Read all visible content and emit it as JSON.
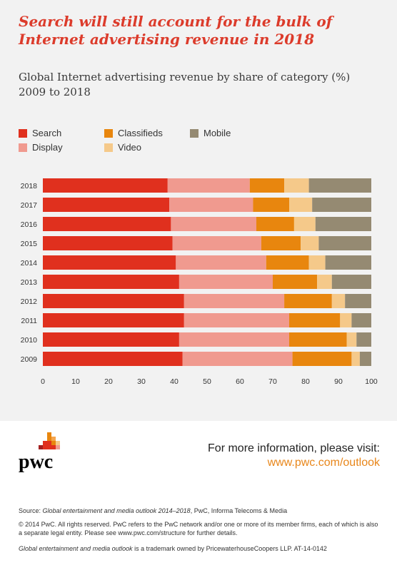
{
  "headline": "Search will still account for the bulk of Internet advertising revenue in 2018",
  "subtitle_line1": "Global Internet advertising revenue by share of category (%)",
  "subtitle_line2": "2009 to 2018",
  "colors": {
    "Search": "#e0301e",
    "Display": "#f09a8f",
    "Classifieds": "#e8860e",
    "Video": "#f5c98a",
    "Mobile": "#958a72"
  },
  "legend": [
    {
      "name": "Search",
      "color": "#e0301e"
    },
    {
      "name": "Classifieds",
      "color": "#e8860e"
    },
    {
      "name": "Mobile",
      "color": "#958a72"
    },
    {
      "name": "Display",
      "color": "#f09a8f"
    },
    {
      "name": "Video",
      "color": "#f5c98a"
    }
  ],
  "chart_data": {
    "type": "bar",
    "orientation": "horizontal",
    "stacked": true,
    "categories": [
      "2018",
      "2017",
      "2016",
      "2015",
      "2014",
      "2013",
      "2012",
      "2011",
      "2010",
      "2009"
    ],
    "series": [
      {
        "name": "Search",
        "values": [
          38,
          38.5,
          39,
          39.5,
          40.5,
          41.5,
          43,
          43,
          41.5,
          42.5
        ]
      },
      {
        "name": "Display",
        "values": [
          25,
          25.5,
          26,
          27,
          27.5,
          28.5,
          30.5,
          32,
          33.5,
          33.5
        ]
      },
      {
        "name": "Classifieds",
        "values": [
          10.5,
          11,
          11.5,
          12,
          13,
          13.5,
          14.5,
          15.5,
          17.5,
          18
        ]
      },
      {
        "name": "Video",
        "values": [
          7.5,
          7,
          6.5,
          5.5,
          5,
          4.5,
          4,
          3.5,
          3,
          2.5
        ]
      },
      {
        "name": "Mobile",
        "values": [
          19,
          18,
          17,
          16,
          14,
          12,
          8,
          6,
          4.5,
          3.5
        ]
      }
    ],
    "xlim": [
      0,
      100
    ],
    "xticks": [
      0,
      10,
      20,
      30,
      40,
      50,
      60,
      70,
      80,
      90,
      100
    ],
    "grid": false,
    "legend_position": "top"
  },
  "logo_text": "pwc",
  "visit_label": "For more information, please visit:",
  "visit_link": "www.pwc.com/outlook",
  "footer": {
    "source_label": "Source: ",
    "source_title": "Global entertainment and media outlook 2014–2018",
    "source_rest": ", PwC, Informa Telecoms & Media",
    "copyright": "© 2014 PwC. All rights reserved. PwC refers to the PwC network and/or one or more of its member firms, each of which is also a separate legal entity. Please see www.pwc.com/structure for further details.",
    "trademark_title": "Global entertainment and media outlook",
    "trademark_rest": " is a trademark owned by PricewaterhouseCoopers LLP. AT-14-0142"
  }
}
